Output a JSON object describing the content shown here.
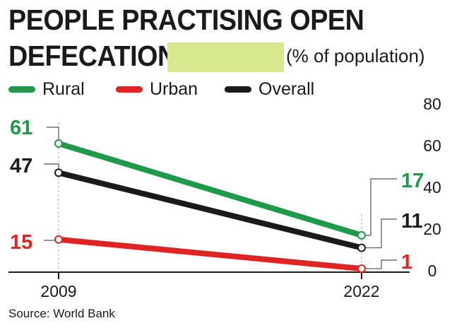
{
  "title": {
    "line1": "PEOPLE PRACTISING OPEN",
    "line2": "DEFECATION",
    "unit": "(% of population)"
  },
  "source": "Source: World Bank",
  "colors": {
    "rural": "#1f9a4a",
    "urban": "#e02424",
    "overall": "#1a1a1a",
    "highlight": "#d7e88e"
  },
  "chart_data": {
    "type": "line",
    "title": "PEOPLE PRACTISING OPEN DEFECATION (% of population)",
    "xlabel": "",
    "ylabel": "% of population",
    "x": [
      2009,
      2022
    ],
    "x_tick_labels": [
      "2009",
      "2022"
    ],
    "ylim": [
      0,
      80
    ],
    "y_ticks": [
      0,
      20,
      40,
      60,
      80
    ],
    "y_tick_labels": [
      "0",
      "20",
      "40",
      "60",
      "80"
    ],
    "legend_position": "top-left",
    "series": [
      {
        "name": "Rural",
        "color": "#1f9a4a",
        "values": [
          61,
          17
        ],
        "labels": [
          "61",
          "17"
        ]
      },
      {
        "name": "Urban",
        "color": "#e02424",
        "values": [
          15,
          1
        ],
        "labels": [
          "15",
          "1"
        ]
      },
      {
        "name": "Overall",
        "color": "#1a1a1a",
        "values": [
          47,
          11
        ],
        "labels": [
          "47",
          "11"
        ]
      }
    ],
    "source": "World Bank"
  }
}
